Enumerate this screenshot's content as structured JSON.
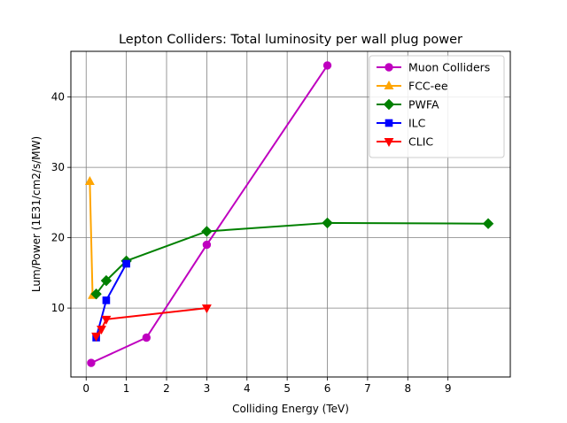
{
  "chart_data": {
    "type": "line",
    "title": "Lepton Colliders: Total luminosity per wall plug power",
    "xlabel": "Colliding Energy (TeV)",
    "ylabel": "Lum/Power (1E31/cm2/s/MW)",
    "xlim": [
      -0.38,
      10.55
    ],
    "ylim": [
      0.2,
      46.5
    ],
    "xticks": [
      0,
      1,
      2,
      3,
      4,
      5,
      6,
      7,
      8,
      9
    ],
    "yticks": [
      10,
      20,
      30,
      40
    ],
    "grid": true,
    "legend_position": "top-right",
    "series": [
      {
        "name": "Muon Colliders",
        "color": "#bf00bf",
        "marker": "circle",
        "x": [
          0.125,
          1.5,
          3,
          6
        ],
        "y": [
          2.2,
          5.8,
          19.0,
          44.5
        ]
      },
      {
        "name": "FCC-ee",
        "color": "#ffa500",
        "marker": "triangle-up",
        "x": [
          0.091,
          0.16
        ],
        "y": [
          28.0,
          11.8
        ]
      },
      {
        "name": "PWFA",
        "color": "#008000",
        "marker": "diamond",
        "x": [
          0.25,
          0.5,
          1,
          3,
          6,
          10
        ],
        "y": [
          12.0,
          13.9,
          16.7,
          20.9,
          22.1,
          22.0
        ]
      },
      {
        "name": "ILC",
        "color": "#0000ff",
        "marker": "square",
        "x": [
          0.25,
          0.5,
          1
        ],
        "y": [
          5.8,
          11.1,
          16.3
        ]
      },
      {
        "name": "CLIC",
        "color": "#ff0000",
        "marker": "triangle-down",
        "x": [
          0.25,
          0.38,
          0.5,
          3
        ],
        "y": [
          6.0,
          7.0,
          8.4,
          10.0
        ]
      }
    ]
  }
}
